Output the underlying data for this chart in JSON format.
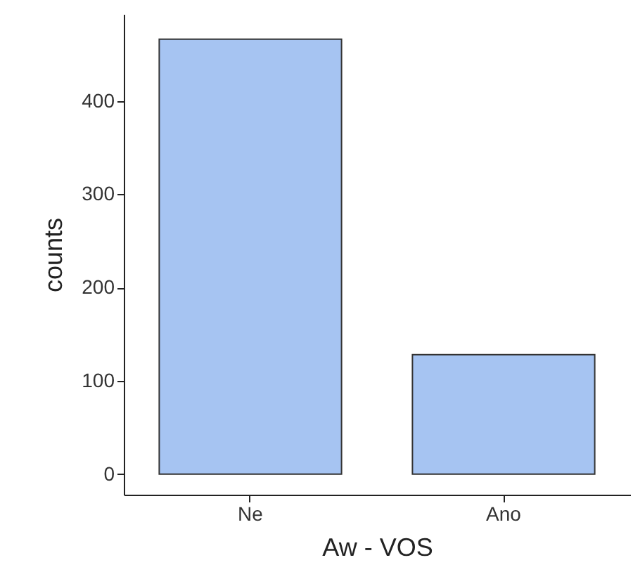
{
  "chart_data": {
    "type": "bar",
    "xlabel": "Aw - VOS",
    "ylabel": "counts",
    "categories": [
      "Ne",
      "Ano"
    ],
    "values": [
      466,
      128
    ],
    "color": "#a6c4f2",
    "ylim": [
      -22,
      493
    ],
    "yticks": [
      0,
      100,
      200,
      300,
      400
    ],
    "grid": false
  }
}
